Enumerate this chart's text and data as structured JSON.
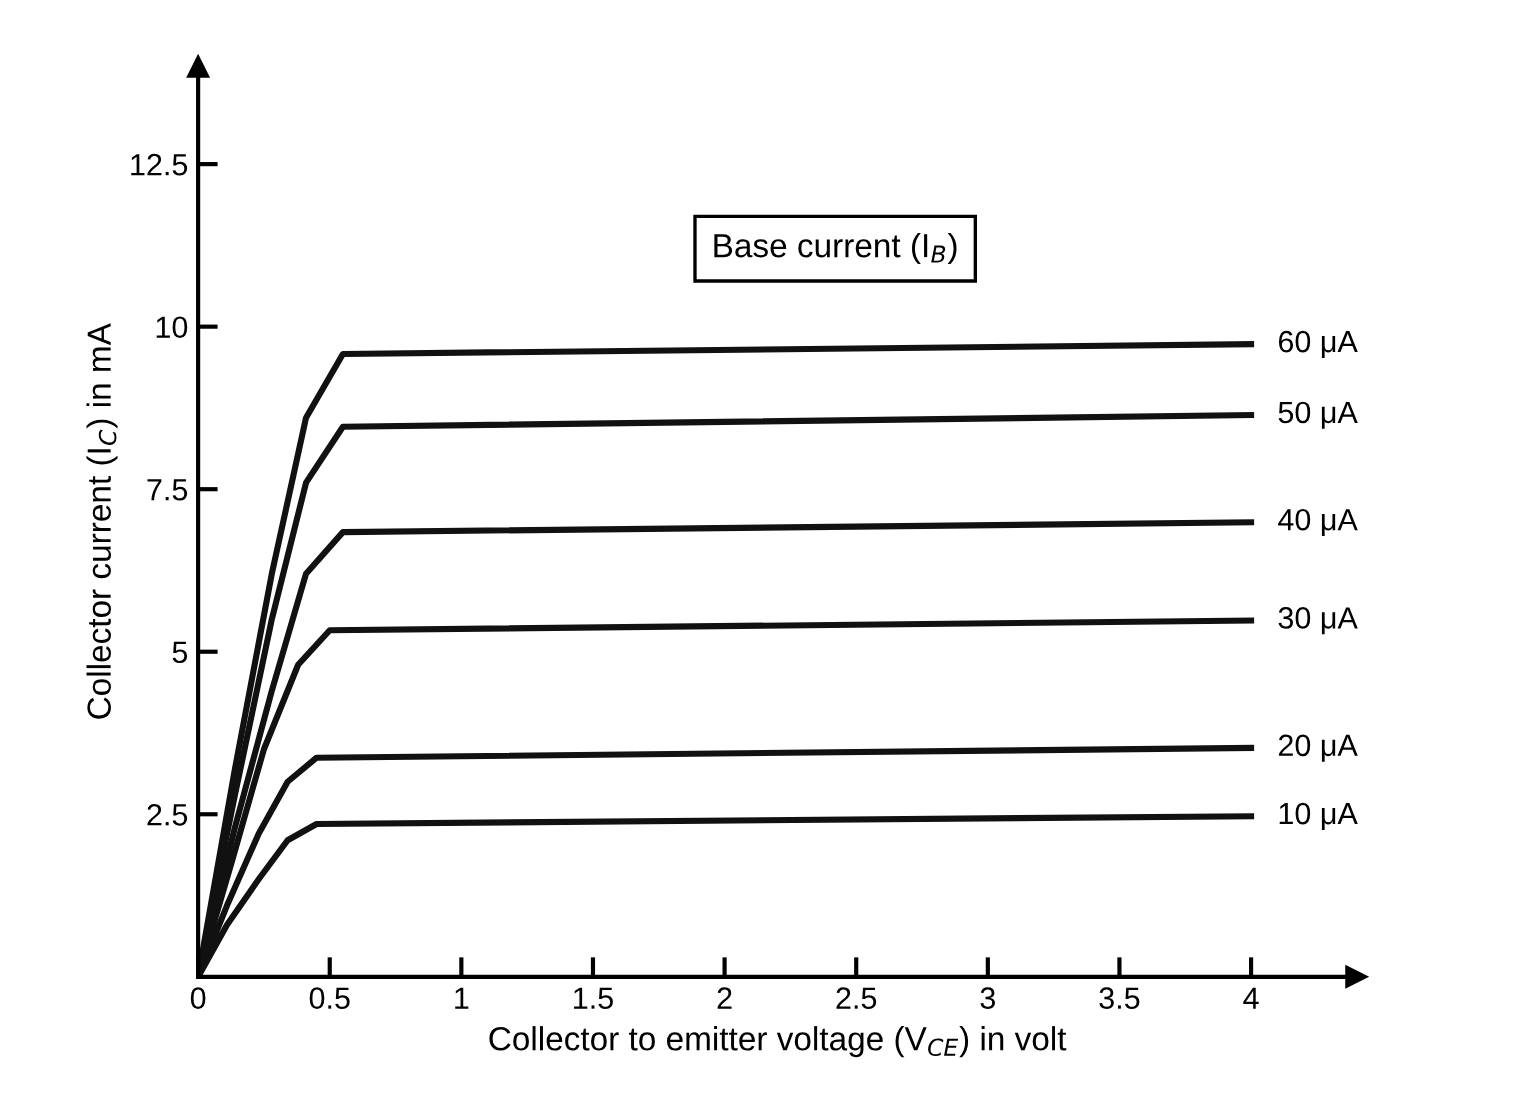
{
  "chart_data": {
    "type": "line",
    "xlabel": "Collector to emitter voltage (V$_{CE}$) in volt",
    "ylabel": "Collector current (I$_{C}$) in mA",
    "legend_title": "Base current (I$_{B}$)",
    "legend": false,
    "grid": false,
    "marker": "none",
    "line_style": "solid",
    "xlim": [
      0,
      4.4
    ],
    "xticks": [
      0,
      0.5,
      1,
      1.5,
      2,
      2.5,
      3,
      3.5,
      4
    ],
    "ylim": [
      0,
      14
    ],
    "yticks": [
      2.5,
      5,
      7.5,
      10,
      12.5
    ],
    "series": [
      {
        "name": "60 μA",
        "color": "#111111",
        "x": [
          0,
          0.14,
          0.28,
          0.41,
          0.55,
          4
        ],
        "values": [
          0,
          3.2,
          6.2,
          8.6,
          9.58,
          9.73
        ]
      },
      {
        "name": "50 μA",
        "color": "#111111",
        "x": [
          0,
          0.14,
          0.28,
          0.41,
          0.55,
          4
        ],
        "values": [
          0,
          2.8,
          5.5,
          7.6,
          8.46,
          8.64
        ]
      },
      {
        "name": "40 μA",
        "color": "#111111",
        "x": [
          0,
          0.14,
          0.28,
          0.41,
          0.55,
          4
        ],
        "values": [
          0,
          2.3,
          4.4,
          6.2,
          6.84,
          6.99
        ]
      },
      {
        "name": "30 μA",
        "color": "#111111",
        "x": [
          0,
          0.13,
          0.25,
          0.38,
          0.5,
          4
        ],
        "values": [
          0,
          1.8,
          3.5,
          4.8,
          5.33,
          5.48
        ]
      },
      {
        "name": "20 μA",
        "color": "#111111",
        "x": [
          0,
          0.11,
          0.23,
          0.34,
          0.45,
          4
        ],
        "values": [
          0,
          1.1,
          2.2,
          3.0,
          3.37,
          3.52
        ]
      },
      {
        "name": "10 μA",
        "color": "#111111",
        "x": [
          0,
          0.11,
          0.23,
          0.34,
          0.45,
          4
        ],
        "values": [
          0,
          0.8,
          1.5,
          2.1,
          2.35,
          2.47
        ]
      }
    ]
  }
}
